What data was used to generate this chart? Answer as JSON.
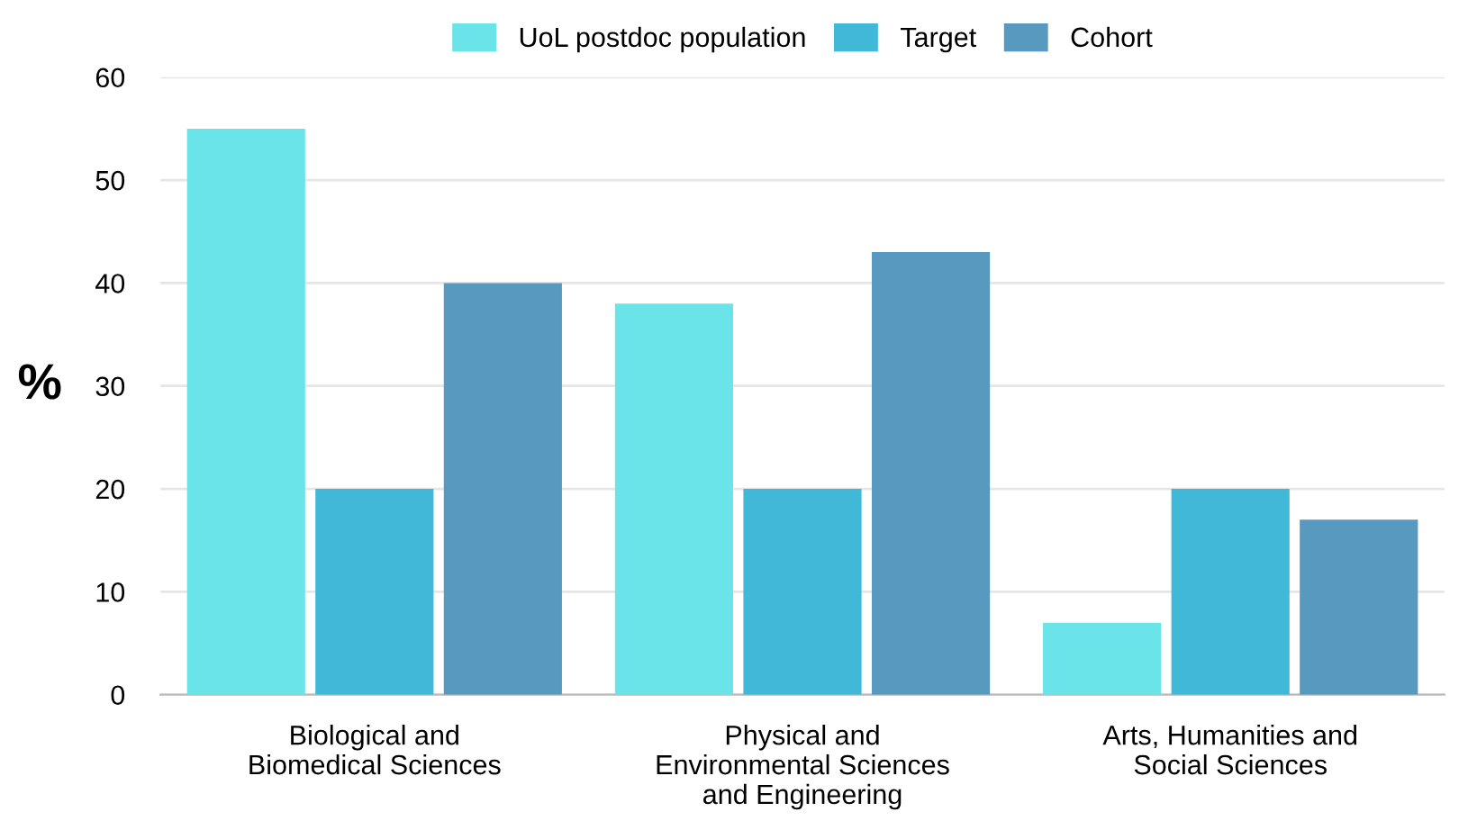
{
  "chart_data": {
    "type": "bar",
    "ylabel": "%",
    "categories": [
      "Biological and\nBiomedical Sciences",
      "Physical and\nEnvironmental Sciences\nand Engineering",
      "Arts, Humanities and\nSocial Sciences"
    ],
    "series": [
      {
        "name": "UoL postdoc population",
        "color": "#6ae4e8",
        "values": [
          55,
          38,
          7
        ]
      },
      {
        "name": "Target",
        "color": "#41b8d8",
        "values": [
          20,
          20,
          20
        ]
      },
      {
        "name": "Cohort",
        "color": "#5799bf",
        "values": [
          40,
          43,
          17
        ]
      }
    ],
    "ylim": [
      0,
      60
    ],
    "yticks": [
      0,
      10,
      20,
      30,
      40,
      50,
      60
    ],
    "grid": "y",
    "legend": "top"
  }
}
